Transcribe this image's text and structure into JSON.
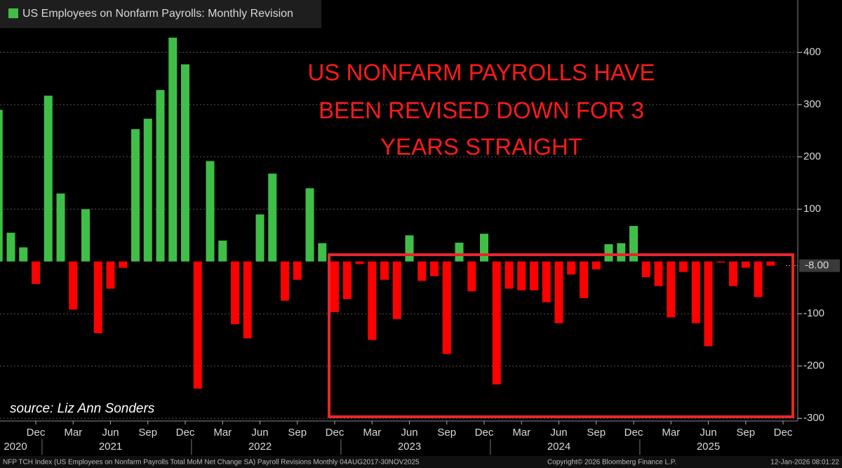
{
  "chart_data": {
    "type": "bar",
    "legend": "US Employees on Nonfarm Payrolls: Monthly Revision",
    "annotation": [
      "US NONFARM PAYROLLS HAVE",
      "BEEN REVISED DOWN FOR 3",
      "YEARS STRAIGHT"
    ],
    "source": "source: Liz Ann Sonders",
    "footer_left": "NFP TCH Index (US Employees on Nonfarm Payrolls Total MoM Net Change SA) Payroll Revisions Monthly 04AUG2017-30NOV2025",
    "footer_mid": "Copyright© 2026 Bloomberg Finance L.P.",
    "footer_right": "12-Jan-2026 08:01:22",
    "categories": [
      null,
      null,
      null,
      "Dec",
      null,
      null,
      "Mar",
      null,
      null,
      "Jun",
      null,
      null,
      "Sep",
      null,
      null,
      "Dec",
      null,
      null,
      "Mar",
      null,
      null,
      "Jun",
      null,
      null,
      "Sep",
      null,
      null,
      "Dec",
      null,
      null,
      "Mar",
      null,
      null,
      "Jun",
      null,
      null,
      "Sep",
      null,
      null,
      "Dec",
      null,
      null,
      "Mar",
      null,
      null,
      "Jun",
      null,
      null,
      "Sep",
      null,
      null,
      "Dec",
      null,
      null,
      "Mar",
      null,
      null,
      "Jun",
      null,
      null,
      "Sep",
      null,
      null,
      "Dec"
    ],
    "year_labels": [
      "2020",
      "2021",
      "2022",
      "2023",
      "2024",
      "2025"
    ],
    "values": [
      290,
      55,
      27,
      -43,
      317,
      130,
      -92,
      100,
      -137,
      -52,
      -12,
      253,
      273,
      328,
      428,
      377,
      -243,
      192,
      40,
      -120,
      -147,
      90,
      168,
      -75,
      -35,
      140,
      35,
      -97,
      -72,
      -5,
      -150,
      -35,
      -110,
      50,
      -37,
      -28,
      -177,
      36,
      -57,
      53,
      -235,
      -52,
      -55,
      -55,
      -78,
      -118,
      -25,
      -70,
      -15,
      33,
      35,
      68,
      -30,
      -47,
      -107,
      -20,
      -118,
      -162,
      -2,
      -47,
      -12,
      -68,
      -8,
      null
    ],
    "colors": {
      "positive": "#3fbf48",
      "negative": "#ff0000"
    },
    "last_value": {
      "value": -8,
      "label": "-8.00"
    },
    "ylim": [
      -305,
      500
    ],
    "yticks": [
      -300,
      -200,
      -100,
      100,
      200,
      300,
      400
    ],
    "grid": true
  }
}
